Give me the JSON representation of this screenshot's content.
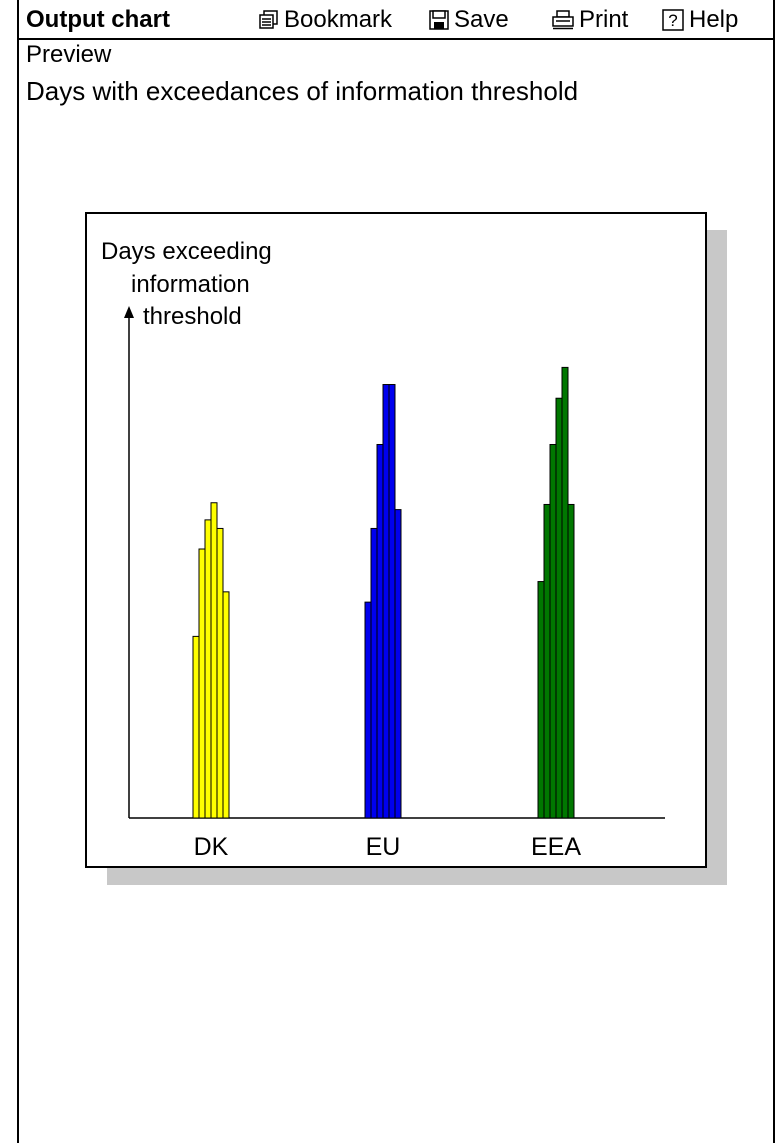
{
  "toolbar": {
    "title": "Output chart",
    "bookmark_label": "Bookmark",
    "save_label": "Save",
    "print_label": "Print",
    "help_label": "Help"
  },
  "preview_label": "Preview",
  "chart_heading": "Days with exceedances of information threshold",
  "chart_data": {
    "type": "bar",
    "ylabel_lines": [
      "Days exceeding",
      "information",
      "threshold"
    ],
    "groups": [
      {
        "label": "DK",
        "color": "#ffff00",
        "values": [
          10.6,
          15.7,
          17.4,
          18.4,
          16.9,
          13.2
        ]
      },
      {
        "label": "EU",
        "color": "#0000ee",
        "values": [
          12.6,
          16.9,
          21.8,
          25.3,
          25.3,
          18.0
        ]
      },
      {
        "label": "EEA",
        "color": "#007700",
        "values": [
          13.8,
          18.3,
          21.8,
          24.5,
          26.3,
          18.3
        ]
      }
    ],
    "ylim": [
      0,
      30
    ],
    "grid": false,
    "legend": "none"
  }
}
